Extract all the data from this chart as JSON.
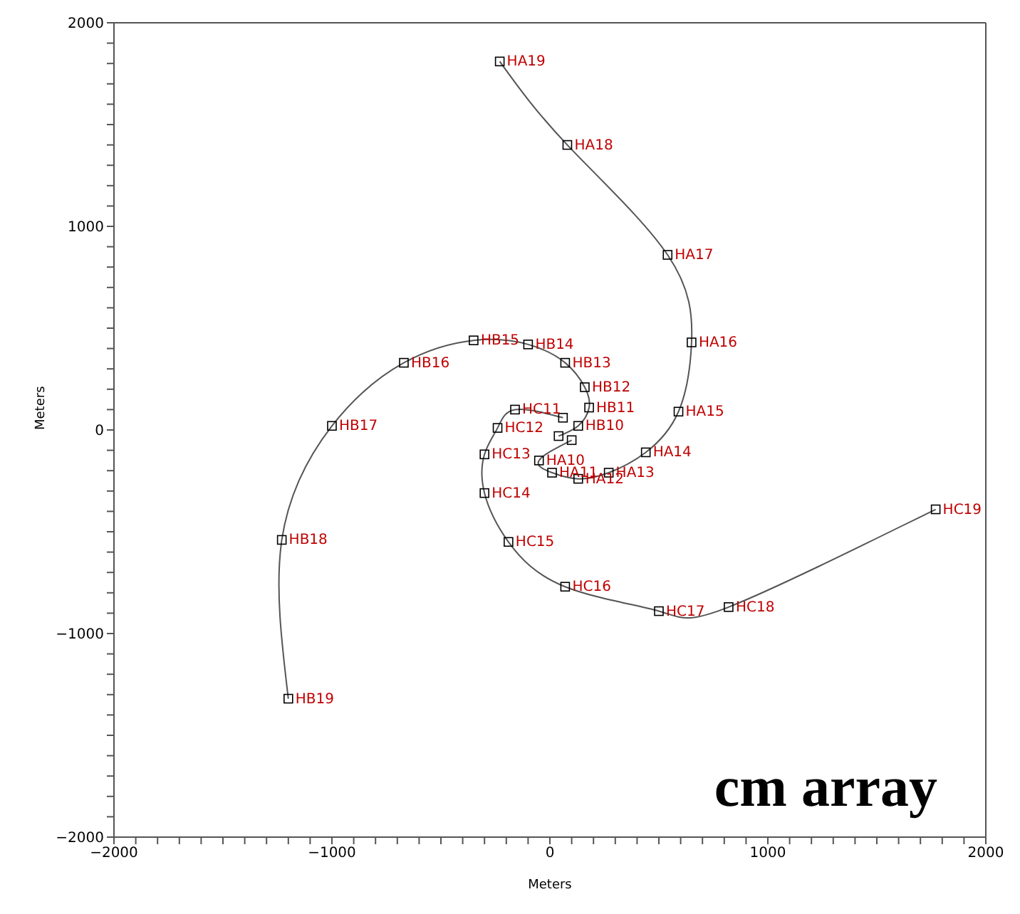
{
  "chart_data": {
    "type": "line",
    "xlabel": "Meters",
    "ylabel": "Meters",
    "xlim": [
      -2000,
      2000
    ],
    "ylim": [
      -2000,
      2000
    ],
    "xticks": [
      {
        "value": -2000,
        "label": "−2000"
      },
      {
        "value": -1900,
        "label": null
      },
      {
        "value": -1800,
        "label": null
      },
      {
        "value": -1700,
        "label": null
      },
      {
        "value": -1600,
        "label": null
      },
      {
        "value": -1500,
        "label": null
      },
      {
        "value": -1400,
        "label": null
      },
      {
        "value": -1300,
        "label": null
      },
      {
        "value": -1200,
        "label": null
      },
      {
        "value": -1100,
        "label": null
      },
      {
        "value": -1000,
        "label": "−1000"
      },
      {
        "value": -900,
        "label": null
      },
      {
        "value": -800,
        "label": null
      },
      {
        "value": -700,
        "label": null
      },
      {
        "value": -600,
        "label": null
      },
      {
        "value": -500,
        "label": null
      },
      {
        "value": -400,
        "label": null
      },
      {
        "value": -300,
        "label": null
      },
      {
        "value": -200,
        "label": null
      },
      {
        "value": -100,
        "label": null
      },
      0,
      {
        "value": 100,
        "label": null
      },
      {
        "value": 200,
        "label": null
      },
      {
        "value": 300,
        "label": null
      },
      {
        "value": 400,
        "label": null
      },
      {
        "value": 500,
        "label": null
      },
      {
        "value": 600,
        "label": null
      },
      {
        "value": 700,
        "label": null
      },
      {
        "value": 800,
        "label": null
      },
      {
        "value": 900,
        "label": null
      },
      1000,
      {
        "value": 1100,
        "label": null
      },
      {
        "value": 1200,
        "label": null
      },
      {
        "value": 1300,
        "label": null
      },
      {
        "value": 1400,
        "label": null
      },
      {
        "value": 1500,
        "label": null
      },
      {
        "value": 1600,
        "label": null
      },
      {
        "value": 1700,
        "label": null
      },
      {
        "value": 1800,
        "label": null
      },
      {
        "value": 1900,
        "label": null
      },
      2000
    ],
    "yticks": [
      {
        "value": -2000,
        "label": "−2000"
      },
      {
        "value": -1900,
        "label": null
      },
      {
        "value": -1800,
        "label": null
      },
      {
        "value": -1700,
        "label": null
      },
      {
        "value": -1600,
        "label": null
      },
      {
        "value": -1500,
        "label": null
      },
      {
        "value": -1400,
        "label": null
      },
      {
        "value": -1300,
        "label": null
      },
      {
        "value": -1200,
        "label": null
      },
      {
        "value": -1100,
        "label": null
      },
      {
        "value": -1000,
        "label": "−1000"
      },
      {
        "value": -900,
        "label": null
      },
      {
        "value": -800,
        "label": null
      },
      {
        "value": -700,
        "label": null
      },
      {
        "value": -600,
        "label": null
      },
      {
        "value": -500,
        "label": null
      },
      {
        "value": -400,
        "label": null
      },
      {
        "value": -300,
        "label": null
      },
      {
        "value": -200,
        "label": null
      },
      {
        "value": -100,
        "label": null
      },
      0,
      {
        "value": 100,
        "label": null
      },
      {
        "value": 200,
        "label": null
      },
      {
        "value": 300,
        "label": null
      },
      {
        "value": 400,
        "label": null
      },
      {
        "value": 500,
        "label": null
      },
      {
        "value": 600,
        "label": null
      },
      {
        "value": 700,
        "label": null
      },
      {
        "value": 800,
        "label": null
      },
      {
        "value": 900,
        "label": null
      },
      1000,
      {
        "value": 1100,
        "label": null
      },
      {
        "value": 1200,
        "label": null
      },
      {
        "value": 1300,
        "label": null
      },
      {
        "value": 1400,
        "label": null
      },
      {
        "value": 1500,
        "label": null
      },
      {
        "value": 1600,
        "label": null
      },
      {
        "value": 1700,
        "label": null
      },
      {
        "value": 1800,
        "label": null
      },
      {
        "value": 1900,
        "label": null
      },
      2000
    ],
    "marker": "square",
    "legend": false,
    "grid": false,
    "series": [
      {
        "color": "#555555",
        "x": [
          100,
          -50,
          10,
          130,
          270,
          440,
          590,
          650,
          540,
          80,
          -230
        ],
        "values": [
          -50,
          -150,
          -210,
          -240,
          -210,
          -110,
          90,
          430,
          860,
          1400,
          1810
        ]
      },
      {
        "color": "#555555",
        "x": [
          40,
          130,
          180,
          160,
          70,
          -100,
          -350,
          -670,
          -1000,
          -1230,
          -1200
        ],
        "values": [
          -30,
          20,
          110,
          210,
          330,
          420,
          440,
          330,
          20,
          -540,
          -1320
        ]
      },
      {
        "color": "#555555",
        "x": [
          60,
          -160,
          -240,
          -300,
          -300,
          -190,
          70,
          500,
          820,
          1770
        ],
        "values": [
          60,
          100,
          10,
          -120,
          -310,
          -550,
          -770,
          -890,
          -870,
          -390
        ]
      }
    ],
    "annotations": [
      {
        "text": "HA10",
        "x": -50,
        "y": -150
      },
      {
        "text": "HA11",
        "x": 10,
        "y": -210
      },
      {
        "text": "HA12",
        "x": 130,
        "y": -240
      },
      {
        "text": "HA13",
        "x": 270,
        "y": -210
      },
      {
        "text": "HA14",
        "x": 440,
        "y": -110
      },
      {
        "text": "HA15",
        "x": 590,
        "y": 90
      },
      {
        "text": "HA16",
        "x": 650,
        "y": 430
      },
      {
        "text": "HA17",
        "x": 540,
        "y": 860
      },
      {
        "text": "HA18",
        "x": 80,
        "y": 1400
      },
      {
        "text": "HA19",
        "x": -230,
        "y": 1810
      },
      {
        "text": "HB10",
        "x": 130,
        "y": 20
      },
      {
        "text": "HB11",
        "x": 180,
        "y": 110
      },
      {
        "text": "HB12",
        "x": 160,
        "y": 210
      },
      {
        "text": "HB13",
        "x": 70,
        "y": 330
      },
      {
        "text": "HB14",
        "x": -100,
        "y": 420
      },
      {
        "text": "HB15",
        "x": -350,
        "y": 440
      },
      {
        "text": "HB16",
        "x": -670,
        "y": 330
      },
      {
        "text": "HB17",
        "x": -1000,
        "y": 20
      },
      {
        "text": "HB18",
        "x": -1230,
        "y": -540
      },
      {
        "text": "HB19",
        "x": -1200,
        "y": -1320
      },
      {
        "text": "HC11",
        "x": -160,
        "y": 100
      },
      {
        "text": "HC12",
        "x": -240,
        "y": 10
      },
      {
        "text": "HC13",
        "x": -300,
        "y": -120
      },
      {
        "text": "HC14",
        "x": -300,
        "y": -310
      },
      {
        "text": "HC15",
        "x": -190,
        "y": -550
      },
      {
        "text": "HC16",
        "x": 70,
        "y": -770
      },
      {
        "text": "HC17",
        "x": 500,
        "y": -890
      },
      {
        "text": "HC18",
        "x": 820,
        "y": -870
      },
      {
        "text": "HC19",
        "x": 1770,
        "y": -390
      },
      "cm array"
    ]
  }
}
